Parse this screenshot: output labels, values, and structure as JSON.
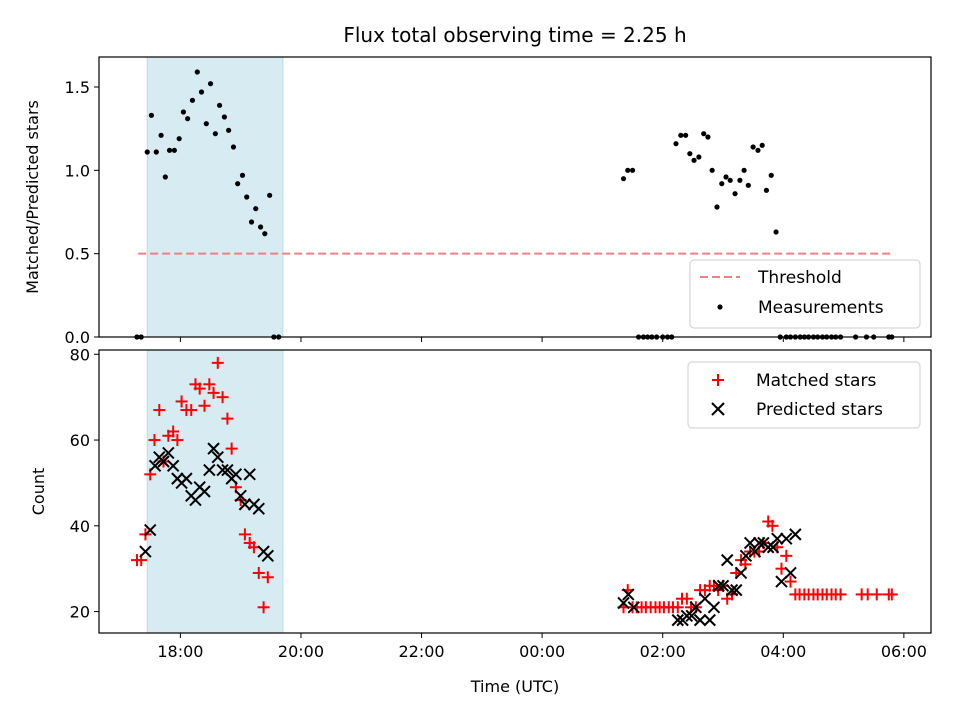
{
  "chart_data": [
    {
      "type": "scatter",
      "title": "Flux total observing time = 2.25 h",
      "xlabel": "",
      "ylabel": "Matched/Predicted stars",
      "x_unit": "hours since 00:00 UTC",
      "xlim": [
        -7.35,
        6.45
      ],
      "ylim": [
        0,
        1.68
      ],
      "yticks": [
        0.0,
        0.5,
        1.0,
        1.5
      ],
      "ytick_labels": [
        "0.0",
        "0.5",
        "1.0",
        "1.5"
      ],
      "shaded_span": [
        -6.55,
        -4.3
      ],
      "shaded_color": "#add8e6",
      "threshold": {
        "name": "Threshold",
        "value": 0.5,
        "x_range": [
          -6.7,
          5.8
        ],
        "color": "#f08080"
      },
      "legend": {
        "placement": "lower-right",
        "entries": [
          "Threshold",
          "Measurements"
        ]
      },
      "series": [
        {
          "name": "Measurements",
          "color": "#000000",
          "x": [
            -6.72,
            -6.65,
            -6.55,
            -6.48,
            -6.4,
            -6.32,
            -6.25,
            -6.18,
            -6.1,
            -6.02,
            -5.95,
            -5.88,
            -5.8,
            -5.72,
            -5.65,
            -5.57,
            -5.5,
            -5.42,
            -5.35,
            -5.27,
            -5.2,
            -5.12,
            -5.05,
            -4.97,
            -4.9,
            -4.82,
            -4.75,
            -4.67,
            -4.6,
            -4.52,
            -4.45,
            -4.37,
            1.35,
            1.42,
            1.5,
            1.6,
            1.68,
            1.75,
            1.82,
            1.9,
            2.0,
            2.08,
            2.15,
            2.22,
            2.3,
            2.38,
            2.45,
            2.52,
            2.6,
            2.68,
            2.75,
            2.82,
            2.9,
            2.98,
            3.05,
            3.12,
            3.2,
            3.28,
            3.35,
            3.42,
            3.5,
            3.58,
            3.65,
            3.72,
            3.8,
            3.88,
            3.95,
            4.05,
            4.12,
            4.2,
            4.28,
            4.35,
            4.42,
            4.5,
            4.57,
            4.65,
            4.72,
            4.8,
            4.87,
            4.95,
            5.2,
            5.38,
            5.5,
            5.75,
            5.8
          ],
          "y": [
            0.0,
            0.0,
            1.11,
            1.33,
            1.11,
            1.21,
            0.96,
            1.12,
            1.12,
            1.19,
            1.35,
            1.31,
            1.42,
            1.59,
            1.47,
            1.28,
            1.52,
            1.22,
            1.39,
            1.32,
            1.24,
            1.14,
            0.92,
            0.97,
            0.84,
            0.69,
            0.77,
            0.66,
            0.62,
            0.85,
            0.0,
            0.0,
            0.95,
            1.0,
            1.0,
            0.0,
            0.0,
            0.0,
            0.0,
            0.0,
            0.0,
            0.0,
            0.0,
            1.16,
            1.21,
            1.21,
            1.1,
            1.06,
            1.08,
            1.22,
            1.2,
            1.0,
            0.78,
            0.92,
            0.96,
            0.94,
            0.86,
            0.94,
            1.0,
            0.91,
            1.14,
            1.12,
            1.15,
            0.88,
            0.97,
            0.63,
            0.0,
            0.0,
            0.0,
            0.0,
            0.0,
            0.0,
            0.0,
            0.0,
            0.0,
            0.0,
            0.0,
            0.0,
            0.0,
            0.0,
            0.0,
            0.0,
            0.0,
            0.0,
            0.0
          ]
        }
      ]
    },
    {
      "type": "scatter",
      "title": "",
      "xlabel": "Time (UTC)",
      "ylabel": "Count",
      "x_unit": "hours since 00:00 UTC",
      "xlim": [
        -7.35,
        6.45
      ],
      "ylim": [
        15,
        81
      ],
      "yticks": [
        20,
        40,
        60,
        80
      ],
      "ytick_labels": [
        "20",
        "40",
        "60",
        "80"
      ],
      "xticks": [
        -6,
        -4,
        -2,
        0,
        2,
        4,
        6
      ],
      "xtick_labels": [
        "18:00",
        "20:00",
        "22:00",
        "00:00",
        "02:00",
        "04:00",
        "06:00"
      ],
      "shaded_span": [
        -6.55,
        -4.3
      ],
      "shaded_color": "#add8e6",
      "legend": {
        "placement": "upper-right",
        "entries": [
          "Matched stars",
          "Predicted stars"
        ]
      },
      "series": [
        {
          "name": "Matched stars",
          "marker": "+",
          "color": "#ff0000",
          "x": [
            -6.72,
            -6.65,
            -6.58,
            -6.5,
            -6.43,
            -6.35,
            -6.28,
            -6.2,
            -6.12,
            -6.05,
            -5.98,
            -5.9,
            -5.82,
            -5.75,
            -5.68,
            -5.6,
            -5.52,
            -5.45,
            -5.38,
            -5.3,
            -5.22,
            -5.15,
            -5.08,
            -5.0,
            -4.93,
            -4.85,
            -4.78,
            -4.7,
            -4.62,
            -4.55,
            1.35,
            1.42,
            1.5,
            1.57,
            1.65,
            1.72,
            1.8,
            1.88,
            1.95,
            2.02,
            2.1,
            2.17,
            2.25,
            2.32,
            2.4,
            2.47,
            2.55,
            2.62,
            2.7,
            2.78,
            2.85,
            2.92,
            3.0,
            3.07,
            3.15,
            3.22,
            3.3,
            3.37,
            3.45,
            3.52,
            3.6,
            3.67,
            3.75,
            3.82,
            3.9,
            3.97,
            4.05,
            4.12,
            4.2,
            4.27,
            4.35,
            4.42,
            4.5,
            4.57,
            4.65,
            4.72,
            4.8,
            4.87,
            4.95,
            5.3,
            5.4,
            5.55,
            5.75,
            5.8
          ],
          "y": [
            32,
            32,
            38,
            52,
            60,
            67,
            55,
            61,
            62,
            60,
            69,
            67,
            67,
            73,
            72,
            68,
            73,
            71,
            78,
            70,
            65,
            58,
            49,
            46,
            38,
            36,
            35,
            29,
            21,
            28,
            21,
            25,
            21,
            21,
            21,
            21,
            21,
            21,
            21,
            21,
            21,
            21,
            21,
            23,
            23,
            21,
            21,
            25,
            25,
            26,
            26,
            25,
            26,
            23,
            24,
            29,
            32,
            31,
            34,
            34,
            34,
            36,
            41,
            40,
            35,
            30,
            33,
            27,
            24,
            24,
            24,
            24,
            24,
            24,
            24,
            24,
            24,
            24,
            24,
            24,
            24,
            24,
            24,
            24
          ]
        },
        {
          "name": "Predicted stars",
          "marker": "x",
          "color": "#000000",
          "x": [
            -6.58,
            -6.5,
            -6.42,
            -6.35,
            -6.28,
            -6.2,
            -6.12,
            -6.05,
            -5.98,
            -5.9,
            -5.82,
            -5.75,
            -5.68,
            -5.6,
            -5.52,
            -5.45,
            -5.38,
            -5.3,
            -5.22,
            -5.15,
            -5.08,
            -5.0,
            -4.93,
            -4.85,
            -4.78,
            -4.7,
            -4.62,
            -4.55,
            1.35,
            1.43,
            1.52,
            2.25,
            2.33,
            2.4,
            2.48,
            2.55,
            2.62,
            2.7,
            2.78,
            2.85,
            2.93,
            3.0,
            3.07,
            3.15,
            3.22,
            3.3,
            3.38,
            3.45,
            3.53,
            3.6,
            3.67,
            3.75,
            3.83,
            3.9,
            3.97,
            4.05,
            4.12,
            4.2
          ],
          "y": [
            34,
            39,
            54,
            56,
            55,
            57,
            54,
            51,
            50,
            51,
            47,
            46,
            49,
            48,
            53,
            58,
            56,
            53,
            53,
            51,
            52,
            47,
            45,
            52,
            45,
            44,
            34,
            33,
            22,
            24,
            21,
            18,
            18,
            19,
            19,
            21,
            18,
            23,
            18,
            21,
            26,
            26,
            32,
            25,
            25,
            29,
            33,
            36,
            34,
            36,
            36,
            35,
            35,
            37,
            27,
            37,
            29,
            38
          ]
        }
      ]
    }
  ]
}
